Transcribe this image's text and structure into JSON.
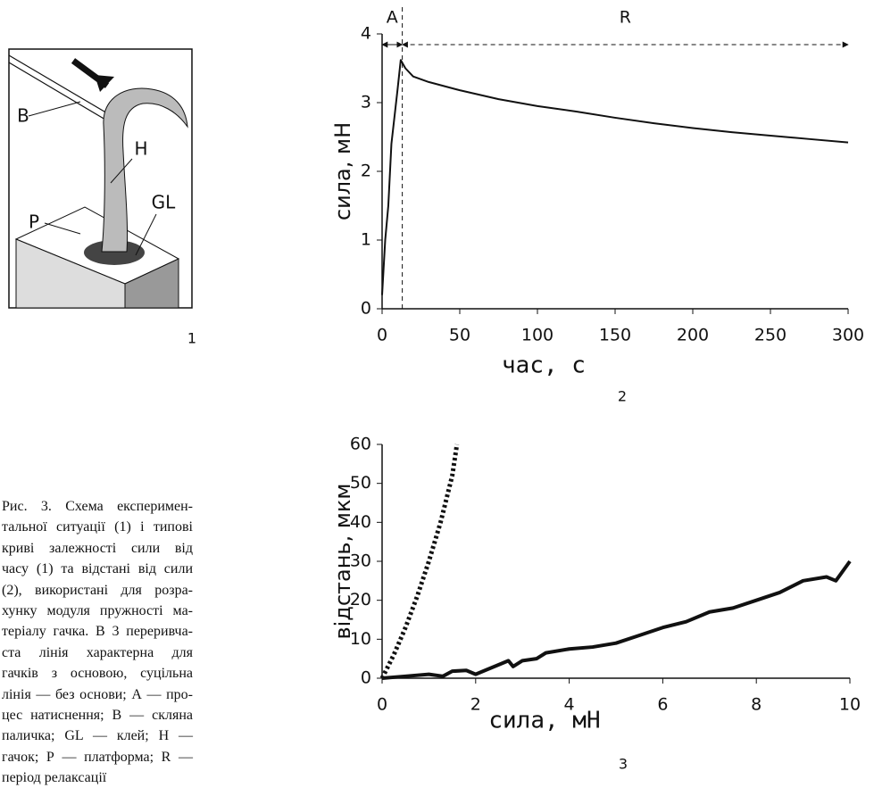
{
  "diagram": {
    "labels": [
      "B",
      "H",
      "P",
      "GL"
    ],
    "panel": "1"
  },
  "caption": {
    "lines": [
      "Рис. 3. Схема експеримен-",
      "тальної ситуації (1) і типові",
      "криві залежності сили від",
      "часу (1) та відстані від сили",
      "(2), використані для розра-",
      "хунку модуля пружності ма-",
      "теріалу гачка. В 3 переривча-",
      "ста лінія характерна для",
      "гачків з основою, суцільна",
      "лінія — без основи; А — про-",
      "цес натиснення; В — скляна",
      "паличка; GL — клей; Н —",
      "гачок; Р — платформа; R —",
      "період релаксації"
    ]
  },
  "chart_data": [
    {
      "type": "line",
      "panel": "2",
      "x_label": "час, с",
      "y_label": "сила, мН",
      "xlim": [
        0,
        300
      ],
      "ylim": [
        0,
        4
      ],
      "xticks": [
        0,
        50,
        100,
        150,
        200,
        250,
        300
      ],
      "yticks": [
        0,
        1,
        2,
        3,
        4
      ],
      "phases": [
        {
          "label": "A",
          "start": 0,
          "end": 13
        },
        {
          "label": "R",
          "start": 13,
          "end": 300
        }
      ],
      "series": [
        {
          "color": "#111111",
          "line_style": "solid",
          "x": [
            0,
            2,
            4,
            6,
            8,
            10,
            12,
            15,
            20,
            30,
            50,
            75,
            100,
            125,
            150,
            175,
            200,
            225,
            250,
            275,
            300
          ],
          "values": [
            0.2,
            1.0,
            1.5,
            2.4,
            2.8,
            3.2,
            3.62,
            3.5,
            3.38,
            3.3,
            3.18,
            3.05,
            2.95,
            2.87,
            2.78,
            2.7,
            2.63,
            2.57,
            2.52,
            2.47,
            2.42
          ]
        }
      ]
    },
    {
      "type": "line",
      "panel": "3",
      "x_label": "сила, мН",
      "y_label": "відстань, мкм",
      "xlim": [
        0,
        10
      ],
      "ylim": [
        0,
        60
      ],
      "xticks": [
        0,
        2,
        4,
        6,
        8,
        10
      ],
      "yticks": [
        0,
        10,
        20,
        30,
        40,
        50,
        60
      ],
      "series": [
        {
          "color": "#111111",
          "line_style": "dotted",
          "x": [
            0,
            0.25,
            0.5,
            0.75,
            1,
            1.25,
            1.5,
            1.6
          ],
          "values": [
            0,
            6,
            13,
            21,
            30,
            40,
            52,
            60
          ]
        },
        {
          "color": "#111111",
          "line_style": "solid",
          "x": [
            0,
            0.5,
            1,
            1.3,
            1.5,
            1.8,
            2,
            2.2,
            2.5,
            2.7,
            2.8,
            3,
            3.3,
            3.5,
            4,
            4.5,
            5,
            5.5,
            6,
            6.5,
            7,
            7.5,
            8,
            8.5,
            9,
            9.5,
            9.7,
            10
          ],
          "values": [
            0,
            0.5,
            1,
            0.5,
            1.8,
            2,
            1,
            2,
            3.5,
            4.5,
            3,
            4.5,
            5,
            6.5,
            7.5,
            8,
            9,
            11,
            13,
            14.5,
            17,
            18,
            20,
            22,
            25,
            26,
            25,
            30
          ]
        }
      ]
    }
  ]
}
